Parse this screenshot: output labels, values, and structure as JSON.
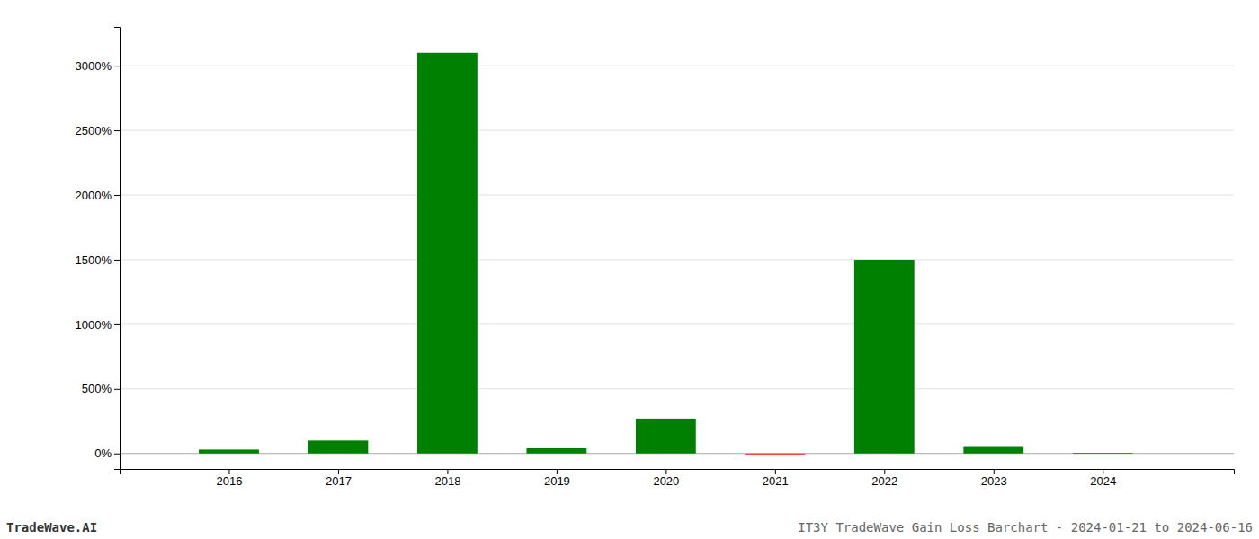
{
  "chart_data": {
    "type": "bar",
    "x": [
      2016,
      2017,
      2018,
      2019,
      2020,
      2021,
      2022,
      2023,
      2024
    ],
    "values": [
      30,
      100,
      3100,
      40,
      270,
      -10,
      1500,
      50,
      5
    ],
    "colors": [
      "#008000",
      "#008000",
      "#008000",
      "#008000",
      "#008000",
      "#ff4444",
      "#008000",
      "#008000",
      "#008000"
    ],
    "xlim": [
      2015.0,
      2025.2
    ],
    "xticks": [
      2016,
      2017,
      2018,
      2019,
      2020,
      2021,
      2022,
      2023,
      2024
    ],
    "ylim": [
      -120,
      3300
    ],
    "yticks": [
      {
        "value": 0,
        "label": "0%"
      },
      {
        "value": 500,
        "label": "500%"
      },
      {
        "value": 1000,
        "label": "1000%"
      },
      {
        "value": 1500,
        "label": "1500%"
      },
      {
        "value": 2000,
        "label": "2000%"
      },
      {
        "value": 2500,
        "label": "2500%"
      },
      {
        "value": 3000,
        "label": "3000%"
      }
    ],
    "grid": true,
    "annotations": [
      "TradeWave.AI",
      "IT3Y TradeWave Gain Loss Barchart - 2024-01-21 to 2024-06-16"
    ]
  }
}
